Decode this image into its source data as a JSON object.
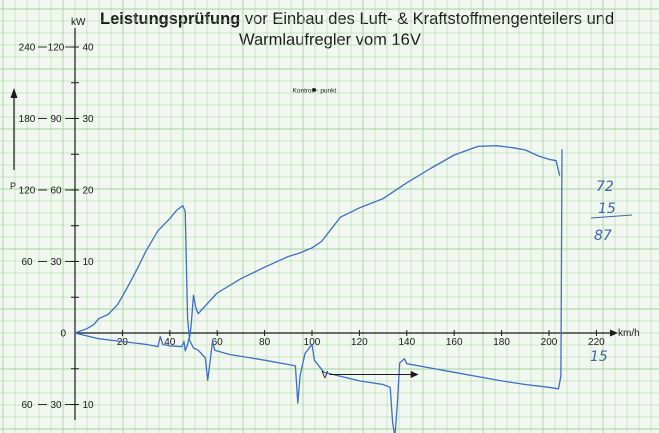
{
  "title": {
    "bold": "Leistungsprüfung",
    "rest": " vor Einbau des Luft- & Kraftstoffmengenteilers und",
    "line2": "Warmlaufregler vom 16V"
  },
  "colors": {
    "grid": "#9fd79a",
    "grid_major": "#7cc678",
    "axis": "#1a1a1a",
    "curve": "#3d6fc4",
    "handwriting": "#3e63a8"
  },
  "chart_data": {
    "type": "line",
    "xlabel": "km/h",
    "ylabel_unit": "kW",
    "ylabel_axis": "P",
    "xlim": [
      0,
      230
    ],
    "ylim": [
      -15,
      42
    ],
    "x_ticks": [
      20,
      40,
      60,
      80,
      100,
      120,
      140,
      160,
      180,
      200,
      220
    ],
    "y_scales": [
      {
        "name": "outer",
        "ticks": [
          {
            "v": 40,
            "label": "240"
          },
          {
            "v": 30,
            "label": "180"
          },
          {
            "v": 20,
            "label": "120"
          },
          {
            "v": 10,
            "label": "60"
          },
          {
            "v": 0,
            "label": "0"
          },
          {
            "v": -10,
            "label": "60"
          }
        ]
      },
      {
        "name": "middle",
        "ticks": [
          {
            "v": 40,
            "label": "120"
          },
          {
            "v": 30,
            "label": "90"
          },
          {
            "v": 20,
            "label": "60"
          },
          {
            "v": 10,
            "label": "30"
          },
          {
            "v": -10,
            "label": "30"
          }
        ]
      },
      {
        "name": "inner",
        "ticks": [
          {
            "v": 40,
            "label": "40"
          },
          {
            "v": 30,
            "label": "30"
          },
          {
            "v": 20,
            "label": "20"
          },
          {
            "v": 10,
            "label": "10"
          },
          {
            "v": -10,
            "label": "10"
          }
        ]
      }
    ],
    "series": [
      {
        "points": [
          [
            0,
            0
          ],
          [
            5,
            0.6
          ],
          [
            8,
            1.2
          ],
          [
            10,
            2
          ],
          [
            14,
            2.6
          ],
          [
            18,
            4
          ],
          [
            22,
            6.3
          ],
          [
            26,
            8.8
          ],
          [
            30,
            11.5
          ],
          [
            35,
            14.3
          ],
          [
            40,
            16
          ],
          [
            43,
            17.2
          ],
          [
            45.5,
            17.8
          ],
          [
            46.5,
            17
          ],
          [
            47.5,
            2
          ],
          [
            48.3,
            -0.8
          ],
          [
            49,
            1
          ],
          [
            50,
            5.3
          ],
          [
            51,
            3.5
          ],
          [
            52,
            2.7
          ],
          [
            55,
            3.8
          ],
          [
            60,
            5.6
          ],
          [
            70,
            7.6
          ],
          [
            80,
            9.2
          ],
          [
            90,
            10.7
          ],
          [
            95,
            11.2
          ],
          [
            100,
            11.9
          ],
          [
            104,
            12.8
          ],
          [
            108,
            14.5
          ],
          [
            112,
            16.2
          ],
          [
            120,
            17.5
          ],
          [
            130,
            18.8
          ],
          [
            140,
            21
          ],
          [
            150,
            23
          ],
          [
            160,
            24.9
          ],
          [
            170,
            26.1
          ],
          [
            178,
            26.2
          ],
          [
            185,
            25.9
          ],
          [
            190,
            25.6
          ],
          [
            196,
            24.7
          ],
          [
            200,
            24.3
          ],
          [
            203,
            24.1
          ],
          [
            204.5,
            22
          ]
        ]
      },
      {
        "points": [
          [
            0,
            0
          ],
          [
            5,
            -0.4
          ],
          [
            10,
            -0.8
          ],
          [
            20,
            -1.2
          ],
          [
            30,
            -1.6
          ],
          [
            35,
            -1.9
          ],
          [
            36,
            -0.5
          ],
          [
            37,
            -1.6
          ],
          [
            40,
            -1.8
          ],
          [
            45,
            -1.9
          ],
          [
            46,
            -1.2
          ],
          [
            46.5,
            -2.5
          ],
          [
            47.5,
            -1.6
          ],
          [
            48,
            -0.8
          ],
          [
            50,
            -2.1
          ],
          [
            52,
            -2.4
          ],
          [
            55,
            -3.5
          ],
          [
            56,
            -6.6
          ],
          [
            57,
            -4
          ],
          [
            58,
            -1.2
          ],
          [
            59,
            -2.4
          ],
          [
            65,
            -3
          ],
          [
            80,
            -3.8
          ],
          [
            90,
            -4.4
          ],
          [
            93,
            -4.6
          ],
          [
            94,
            -9.8
          ],
          [
            95,
            -6
          ],
          [
            97,
            -2.9
          ],
          [
            100,
            -1.6
          ],
          [
            101,
            -3.8
          ],
          [
            105,
            -5.5
          ],
          [
            120,
            -6.7
          ],
          [
            130,
            -7.2
          ],
          [
            133,
            -7.6
          ],
          [
            134,
            -12.5
          ],
          [
            135,
            -14.5
          ],
          [
            136,
            -10
          ],
          [
            137,
            -4.2
          ],
          [
            139,
            -3.6
          ],
          [
            140,
            -4.3
          ],
          [
            150,
            -4.9
          ],
          [
            160,
            -5.5
          ],
          [
            170,
            -6.1
          ],
          [
            180,
            -6.7
          ],
          [
            190,
            -7.2
          ],
          [
            200,
            -7.6
          ],
          [
            204,
            -7.8
          ],
          [
            205,
            -6
          ],
          [
            205.5,
            25.7
          ]
        ]
      }
    ],
    "annotations": {
      "control_point": {
        "text": "Kontroll - punkt",
        "x": 101,
        "y": 34
      },
      "v_arrow": {
        "text": "V",
        "x_from": 104,
        "x_to": 145,
        "y": -5.8
      }
    }
  },
  "handwritten": {
    "a": "72",
    "b": "15",
    "total": "87",
    "below": "15"
  }
}
